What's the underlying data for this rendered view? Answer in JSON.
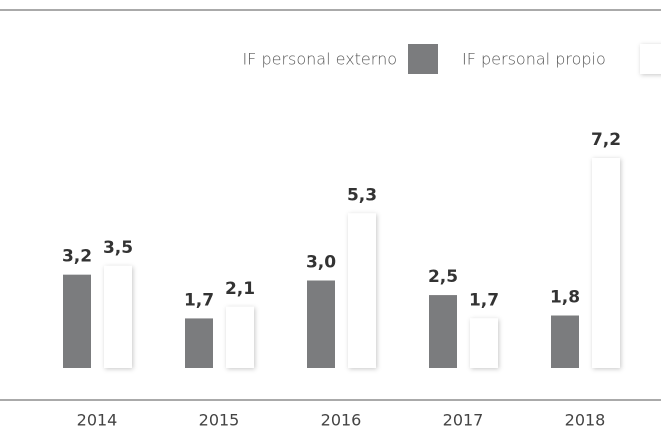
{
  "chart_data": {
    "type": "bar",
    "categories": [
      "2014",
      "2015",
      "2016",
      "2017",
      "2018"
    ],
    "series": [
      {
        "name": "IF personal externo",
        "color": "#7b7c7e",
        "values": [
          3.2,
          1.7,
          3.0,
          2.5,
          1.8
        ],
        "value_labels": [
          "3,2",
          "1,7",
          "3,0",
          "2,5",
          "1,8"
        ]
      },
      {
        "name": "IF personal propio",
        "color": "#ffffff",
        "values": [
          3.5,
          2.1,
          5.3,
          1.7,
          7.2
        ],
        "value_labels": [
          "3,5",
          "2,1",
          "5,3",
          "1,7",
          "7,2"
        ]
      }
    ]
  }
}
